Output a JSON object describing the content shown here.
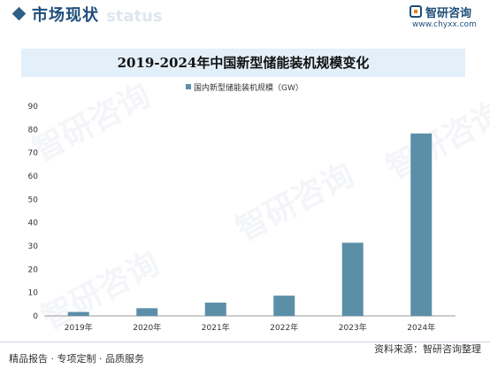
{
  "header": {
    "section_title": "市场现状",
    "section_bg_text": "status",
    "logo_name": "智研咨询",
    "logo_url": "www.chyxx.com",
    "watermark": "智研咨询"
  },
  "chart_data": {
    "type": "bar",
    "title": "2019-2024年中国新型储能装机规模变化",
    "categories": [
      "2019年",
      "2020年",
      "2021年",
      "2022年",
      "2023年",
      "2024年"
    ],
    "series": [
      {
        "name": "国内新型储能装机规模（GW）",
        "values": [
          1.7,
          3.3,
          5.7,
          8.7,
          31.4,
          78.3
        ],
        "color": "#5b8fa8"
      }
    ],
    "ylim": [
      0,
      90
    ],
    "yticks": [
      0,
      10,
      20,
      30,
      40,
      50,
      60,
      70,
      80,
      90
    ],
    "xlabel": "",
    "ylabel": "",
    "legend_position": "top-center",
    "grid": false
  },
  "footer": {
    "left": "精品报告 · 专项定制 · 品质服务",
    "right": "资料来源：智研咨询整理"
  }
}
